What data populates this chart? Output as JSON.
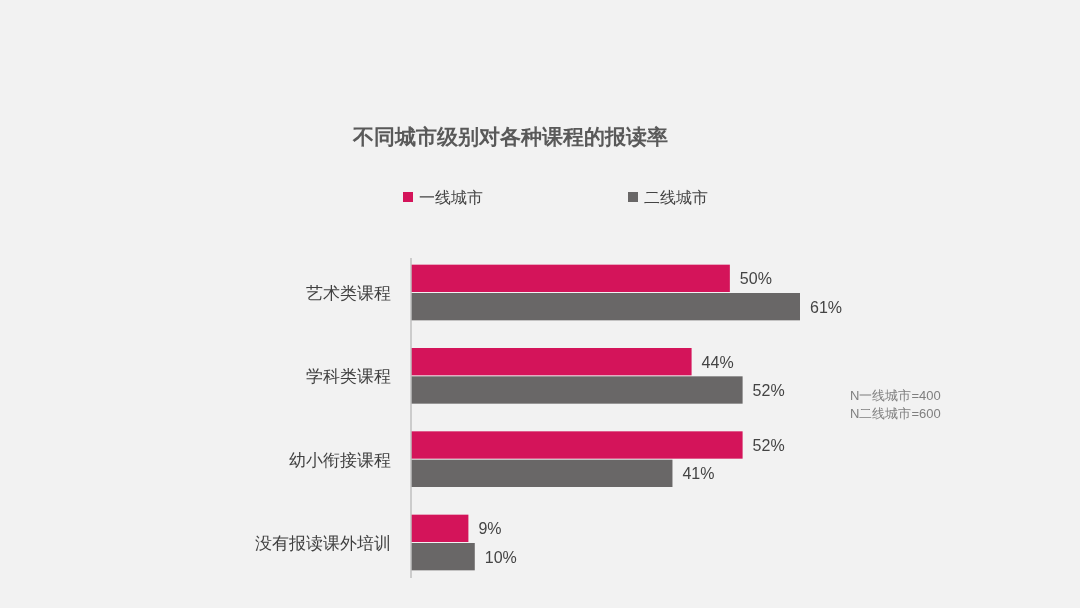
{
  "chart_data": {
    "type": "bar",
    "orientation": "horizontal",
    "title": "不同城市级别对各种课程的报读率",
    "categories": [
      "艺术类课程",
      "学科类课程",
      "幼小衔接课程",
      "没有报读课外培训"
    ],
    "series": [
      {
        "name": "一线城市",
        "color": "#d4145a",
        "values": [
          50,
          44,
          52,
          9
        ],
        "value_labels": [
          "50%",
          "44%",
          "52%",
          "9%"
        ]
      },
      {
        "name": "二线城市",
        "color": "#696767",
        "values": [
          61,
          52,
          41,
          10
        ],
        "value_labels": [
          "61%",
          "52%",
          "41%",
          "10%"
        ]
      }
    ],
    "annotations": [
      "N一线城市=400",
      "N二线城市=600"
    ],
    "legend": "top left",
    "grid": false
  }
}
